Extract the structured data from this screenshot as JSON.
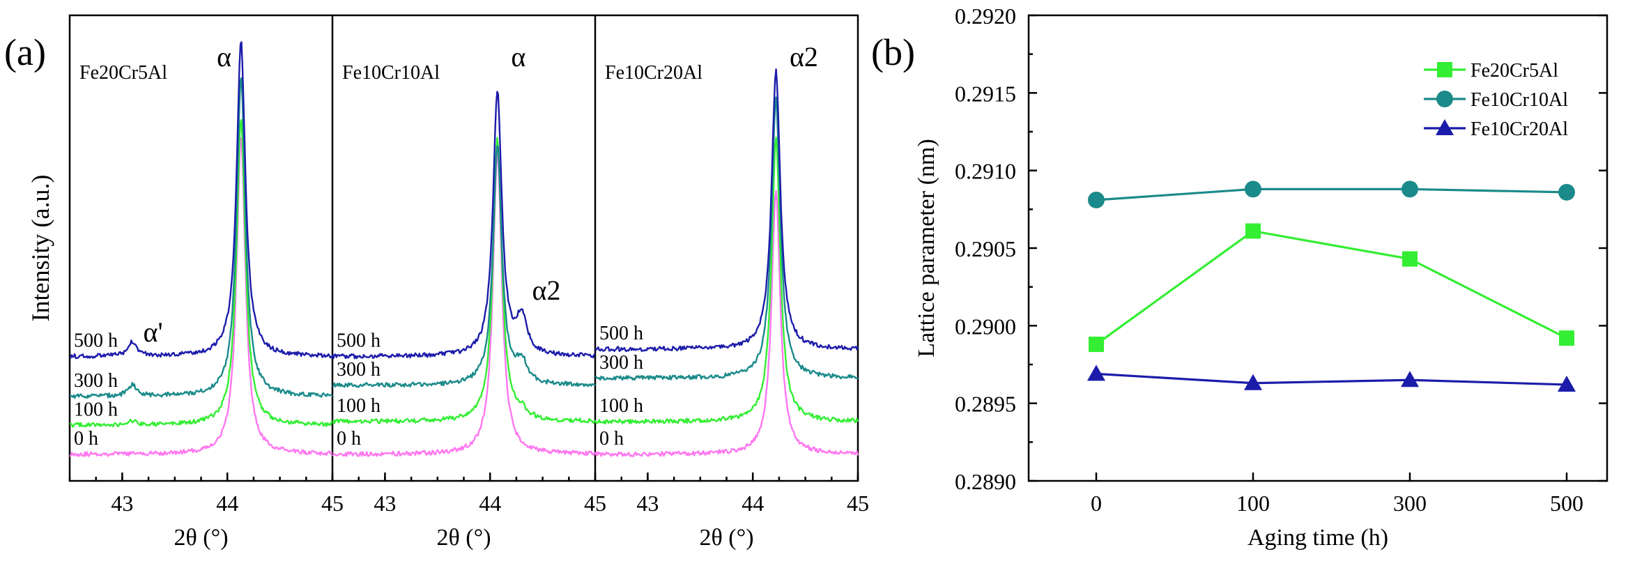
{
  "figure": {
    "panel_a_label": "(a)",
    "panel_b_label": "(b)"
  },
  "colors": {
    "0 h": "#ff77f0",
    "100 h": "#33ee33",
    "300 h": "#1b8a8a",
    "500 h": "#1c1caa",
    "Fe20Cr5Al": "#33ee33",
    "Fe10Cr10Al": "#1b8a8a",
    "Fe10Cr20Al": "#1c1caa"
  },
  "chart_data": [
    {
      "type": "line",
      "panel": "(a)",
      "ylabel": "Intensity (a.u.)",
      "xlabel": "2θ (°)",
      "xlim": [
        42.5,
        45
      ],
      "xticks": [
        43,
        44,
        45
      ],
      "first_tick_labels": [
        "43",
        "44",
        "45"
      ],
      "inner_tick_labels": [
        "43",
        "44",
        "45"
      ],
      "last_tick_labels": [
        "43",
        "44",
        "45"
      ],
      "series_labels": [
        "500 h",
        "300 h",
        "100 h",
        "0 h"
      ],
      "subplots": [
        {
          "alloy": "Fe20Cr5Al",
          "annotations": [
            {
              "text": "α",
              "x": 44.0
            },
            {
              "text": "α'",
              "x": 43.2
            }
          ],
          "peaks": [
            {
              "x": 44.13,
              "width": 0.05,
              "label": "α"
            },
            {
              "x": 43.1,
              "width": 0.05,
              "label": "α'"
            }
          ],
          "traces": [
            {
              "name": "0 h",
              "offset": 0,
              "peak_height": 0.88,
              "secondary_height": 0
            },
            {
              "name": "100 h",
              "offset": 0.08,
              "peak_height": 0.85,
              "secondary_height": 0.01
            },
            {
              "name": "300 h",
              "offset": 0.16,
              "peak_height": 0.88,
              "secondary_height": 0.03
            },
            {
              "name": "500 h",
              "offset": 0.27,
              "peak_height": 0.87,
              "secondary_height": 0.04
            }
          ]
        },
        {
          "alloy": "Fe10Cr10Al",
          "annotations": [
            {
              "text": "α",
              "x": 44.3
            },
            {
              "text": "α2",
              "x": 44.4
            }
          ],
          "peaks": [
            {
              "x": 44.07,
              "width": 0.05,
              "label": "α"
            },
            {
              "x": 44.3,
              "width": 0.06,
              "label": "α2"
            }
          ],
          "traces": [
            {
              "name": "0 h",
              "offset": 0,
              "peak_height": 0.84,
              "secondary_height": 0
            },
            {
              "name": "100 h",
              "offset": 0.09,
              "peak_height": 0.78,
              "secondary_height": 0.02
            },
            {
              "name": "300 h",
              "offset": 0.19,
              "peak_height": 0.66,
              "secondary_height": 0.06
            },
            {
              "name": "500 h",
              "offset": 0.27,
              "peak_height": 0.73,
              "secondary_height": 0.1
            }
          ]
        },
        {
          "alloy": "Fe10Cr20Al",
          "annotations": [
            {
              "text": "α2",
              "x": 44.35
            }
          ],
          "peaks": [
            {
              "x": 44.22,
              "width": 0.05,
              "label": "α2"
            }
          ],
          "traces": [
            {
              "name": "0 h",
              "offset": 0,
              "peak_height": 0.73,
              "secondary_height": 0
            },
            {
              "name": "100 h",
              "offset": 0.09,
              "peak_height": 0.78,
              "secondary_height": 0
            },
            {
              "name": "300 h",
              "offset": 0.21,
              "peak_height": 0.77,
              "secondary_height": 0
            },
            {
              "name": "500 h",
              "offset": 0.29,
              "peak_height": 0.77,
              "secondary_height": 0
            }
          ]
        }
      ]
    },
    {
      "type": "line",
      "panel": "(b)",
      "title": "",
      "xlabel": "Aging time (h)",
      "ylabel": "Lattice parameter (nm)",
      "categories": [
        "0",
        "100",
        "300",
        "500"
      ],
      "ylim": [
        0.289,
        0.292
      ],
      "yticks": [
        "0.2890",
        "0.2895",
        "0.2900",
        "0.2905",
        "0.2910",
        "0.2915",
        "0.2920"
      ],
      "legend_position": "top-right",
      "series": [
        {
          "name": "Fe20Cr5Al",
          "marker": "square",
          "values": [
            0.28988,
            0.29061,
            0.29043,
            0.28992
          ]
        },
        {
          "name": "Fe10Cr10Al",
          "marker": "circle",
          "values": [
            0.29081,
            0.29088,
            0.29088,
            0.29086
          ]
        },
        {
          "name": "Fe10Cr20Al",
          "marker": "triangle",
          "values": [
            0.28969,
            0.28963,
            0.28965,
            0.28962
          ]
        }
      ]
    }
  ]
}
